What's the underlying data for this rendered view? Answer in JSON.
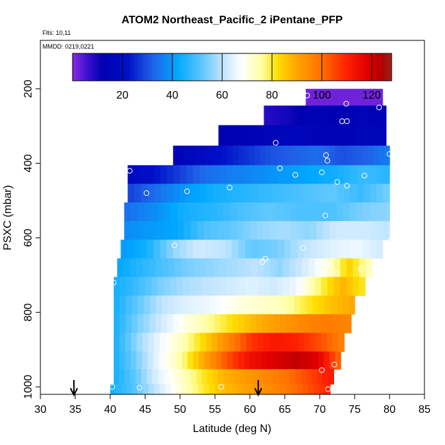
{
  "chart_data": {
    "type": "heatmap",
    "title": "ATOM2 Northeast_Pacific_2 iPentane_PFP",
    "flights_label": "Flts: 10,11",
    "dates_label": "MMDD: 0219,0221",
    "xlabel": "Latitude (deg N)",
    "ylabel": "PSXC (mbar)",
    "xlim": [
      30,
      85
    ],
    "ylim": [
      1020,
      70
    ],
    "x_ticks": [
      30,
      35,
      40,
      45,
      50,
      55,
      60,
      65,
      70,
      75,
      80,
      85
    ],
    "y_ticks": [
      200,
      400,
      600,
      800,
      1000
    ],
    "colorbar": {
      "min": 0,
      "max": 128,
      "ticks": [
        20,
        40,
        60,
        80,
        100,
        120
      ],
      "stops": [
        {
          "v": 0,
          "c": "#8a2be2"
        },
        {
          "v": 6,
          "c": "#3a10d0"
        },
        {
          "v": 12,
          "c": "#0000b0"
        },
        {
          "v": 22,
          "c": "#0010c8"
        },
        {
          "v": 32,
          "c": "#2060e8"
        },
        {
          "v": 42,
          "c": "#00a8ff"
        },
        {
          "v": 52,
          "c": "#60c8ff"
        },
        {
          "v": 60,
          "c": "#c0e4ff"
        },
        {
          "v": 68,
          "c": "#ffffff"
        },
        {
          "v": 76,
          "c": "#ffffa0"
        },
        {
          "v": 82,
          "c": "#ffe000"
        },
        {
          "v": 90,
          "c": "#ffa500"
        },
        {
          "v": 100,
          "c": "#ff7000"
        },
        {
          "v": 110,
          "c": "#ff2000"
        },
        {
          "v": 118,
          "c": "#e00000"
        },
        {
          "v": 124,
          "c": "#b00000"
        },
        {
          "v": 128,
          "c": "#a02020"
        }
      ]
    },
    "layers": [
      {
        "p": 220,
        "x0": 68,
        "x1": 79,
        "vals": [
          2,
          2
        ]
      },
      {
        "p": 270,
        "x0": 62,
        "x1": 79.5,
        "vals": [
          8,
          10,
          14,
          12,
          15,
          14
        ]
      },
      {
        "p": 325,
        "x0": 55.5,
        "x1": 79.5,
        "vals": [
          12,
          14,
          15,
          16,
          15,
          14,
          16,
          15
        ]
      },
      {
        "p": 380,
        "x0": 49,
        "x1": 80,
        "vals": [
          14,
          18,
          22,
          26,
          30,
          32,
          34,
          30,
          32,
          36
        ]
      },
      {
        "p": 430,
        "x0": 42.5,
        "x1": 80,
        "vals": [
          18,
          22,
          28,
          34,
          36,
          38,
          40,
          42,
          44,
          48,
          46
        ]
      },
      {
        "p": 480,
        "x0": 42.5,
        "x1": 80,
        "vals": [
          28,
          34,
          40,
          44,
          46,
          48,
          50,
          52,
          48,
          54
        ]
      },
      {
        "p": 530,
        "x0": 42,
        "x1": 80,
        "vals": [
          34,
          38,
          44,
          46,
          50,
          52,
          50,
          50,
          54,
          56
        ]
      },
      {
        "p": 580,
        "x0": 42,
        "x1": 80,
        "vals": [
          38,
          40,
          42,
          50,
          52,
          56,
          58,
          56,
          62,
          62,
          60
        ]
      },
      {
        "p": 630,
        "x0": 41.5,
        "x1": 79,
        "vals": [
          40,
          44,
          56,
          62,
          60,
          52,
          54,
          60,
          64,
          66,
          62
        ]
      },
      {
        "p": 680,
        "x0": 41,
        "x1": 77.5,
        "vals": [
          42,
          46,
          50,
          54,
          56,
          58,
          60,
          56,
          62,
          70,
          84,
          72
        ]
      },
      {
        "p": 730,
        "x0": 40.5,
        "x1": 76.5,
        "vals": [
          44,
          48,
          54,
          58,
          60,
          62,
          64,
          62,
          66,
          78,
          88,
          80
        ]
      },
      {
        "p": 780,
        "x0": 40.5,
        "x1": 75,
        "vals": [
          44,
          52,
          60,
          64,
          66,
          70,
          72,
          74,
          80,
          86,
          90
        ]
      },
      {
        "p": 830,
        "x0": 40.5,
        "x1": 74.5,
        "vals": [
          44,
          54,
          62,
          70,
          76,
          82,
          88,
          92,
          96,
          98,
          96
        ]
      },
      {
        "p": 880,
        "x0": 40.5,
        "x1": 73.5,
        "vals": [
          44,
          56,
          66,
          74,
          84,
          96,
          108,
          112,
          110,
          104,
          96
        ]
      },
      {
        "p": 930,
        "x0": 40.5,
        "x1": 73,
        "vals": [
          44,
          54,
          66,
          76,
          90,
          104,
          114,
          118,
          122,
          118,
          100
        ]
      },
      {
        "p": 975,
        "x0": 40.5,
        "x1": 72,
        "vals": [
          44,
          52,
          64,
          72,
          80,
          88,
          92,
          96,
          100,
          106,
          112
        ]
      },
      {
        "p": 1010,
        "x0": 40,
        "x1": 71.5,
        "vals": [
          44,
          50,
          60,
          70,
          78,
          86,
          90,
          94,
          98,
          104,
          110
        ]
      }
    ],
    "samples": [
      {
        "lat": 68.2,
        "p": 218
      },
      {
        "lat": 73.8,
        "p": 240
      },
      {
        "lat": 78.5,
        "p": 250
      },
      {
        "lat": 73.2,
        "p": 287
      },
      {
        "lat": 73.9,
        "p": 287
      },
      {
        "lat": 63.7,
        "p": 345
      },
      {
        "lat": 80,
        "p": 375
      },
      {
        "lat": 70.9,
        "p": 378
      },
      {
        "lat": 71.1,
        "p": 393
      },
      {
        "lat": 42.8,
        "p": 420
      },
      {
        "lat": 64.3,
        "p": 413
      },
      {
        "lat": 70.3,
        "p": 424
      },
      {
        "lat": 66.5,
        "p": 431
      },
      {
        "lat": 76.4,
        "p": 433
      },
      {
        "lat": 72.5,
        "p": 450
      },
      {
        "lat": 73.9,
        "p": 460
      },
      {
        "lat": 57.1,
        "p": 465
      },
      {
        "lat": 51.0,
        "p": 475
      },
      {
        "lat": 45.2,
        "p": 480
      },
      {
        "lat": 70.8,
        "p": 540
      },
      {
        "lat": 49.2,
        "p": 620
      },
      {
        "lat": 80.2,
        "p": 605
      },
      {
        "lat": 67.6,
        "p": 627
      },
      {
        "lat": 62.2,
        "p": 656
      },
      {
        "lat": 61.8,
        "p": 665
      },
      {
        "lat": 71.0,
        "p": 668
      },
      {
        "lat": 71.6,
        "p": 675
      },
      {
        "lat": 75.9,
        "p": 683
      },
      {
        "lat": 72.5,
        "p": 695
      },
      {
        "lat": 40.5,
        "p": 720
      },
      {
        "lat": 70.3,
        "p": 955
      },
      {
        "lat": 72.1,
        "p": 940
      },
      {
        "lat": 40.3,
        "p": 1000
      },
      {
        "lat": 44.2,
        "p": 1002
      },
      {
        "lat": 49.6,
        "p": 1005
      },
      {
        "lat": 55.9,
        "p": 1000
      },
      {
        "lat": 71.2,
        "p": 1006
      }
    ],
    "arrows": [
      34.8,
      61.2
    ]
  }
}
